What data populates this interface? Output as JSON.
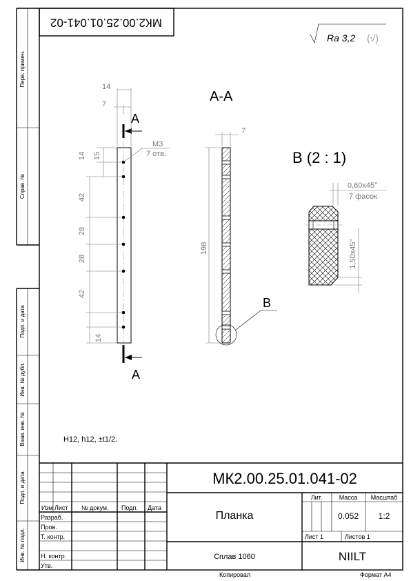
{
  "designation": "МК2.00.25.01.041-02",
  "designation_rotated": "МК2.00.25.01.041-02",
  "roughness": {
    "value": "Ra 3,2",
    "check": "(√)"
  },
  "views": {
    "section_label": "А-А",
    "section_arrow_top": "А",
    "section_arrow_bottom": "А",
    "detail_callout": "В",
    "detail_title": "В (2 : 1)"
  },
  "dimensions": {
    "top_14": "14",
    "top_7": "7",
    "thread_size": "М3",
    "thread_count": "7 отв.",
    "left_14": "14",
    "left_15": "15",
    "left_42_a": "42",
    "left_28_a": "28",
    "left_28_b": "28",
    "left_42_b": "42",
    "left_14_bottom": "14",
    "section_7": "7",
    "section_198": "198",
    "chamfer_top": "0,60x45°",
    "chamfer_top_count": "7 фасок",
    "chamfer_side": "1,50x45°"
  },
  "notes": {
    "tolerances": "H12, h12, ±t1/2."
  },
  "side_strip": {
    "perv_primen": "Перв. примен.",
    "sprav_no": "Справ. №",
    "podp_data_1": "Подп. и дата",
    "inv_dubl": "Инв. № дубл.",
    "vzam_inv": "Взам. инв. №",
    "podp_data_2": "Подп. и дата",
    "inv_podl": "Инв. № подл."
  },
  "title_block": {
    "designation": "МК2.00.25.01.041-02",
    "part_name": "Планка",
    "material": "Сплав 1060",
    "organization": "NIILT",
    "col_izm": "Изм",
    "col_list": "Лист",
    "col_doc": "№ докум.",
    "col_podp": "Подп.",
    "col_data": "Дата",
    "row_razrab": "Разраб.",
    "row_prov": "Пров.",
    "row_tkontr": "Т. контр.",
    "row_nkontr": "Н. контр.",
    "row_utv": "Утв.",
    "lit_label": "Лит.",
    "mass_label": "Масса",
    "scale_label": "Масштаб",
    "mass_value": "0.052",
    "scale_value": "1:2",
    "sheet": "Лист 1",
    "sheets": "Листов 1"
  },
  "footer": {
    "copied": "Копировал",
    "format": "Формат А4"
  }
}
